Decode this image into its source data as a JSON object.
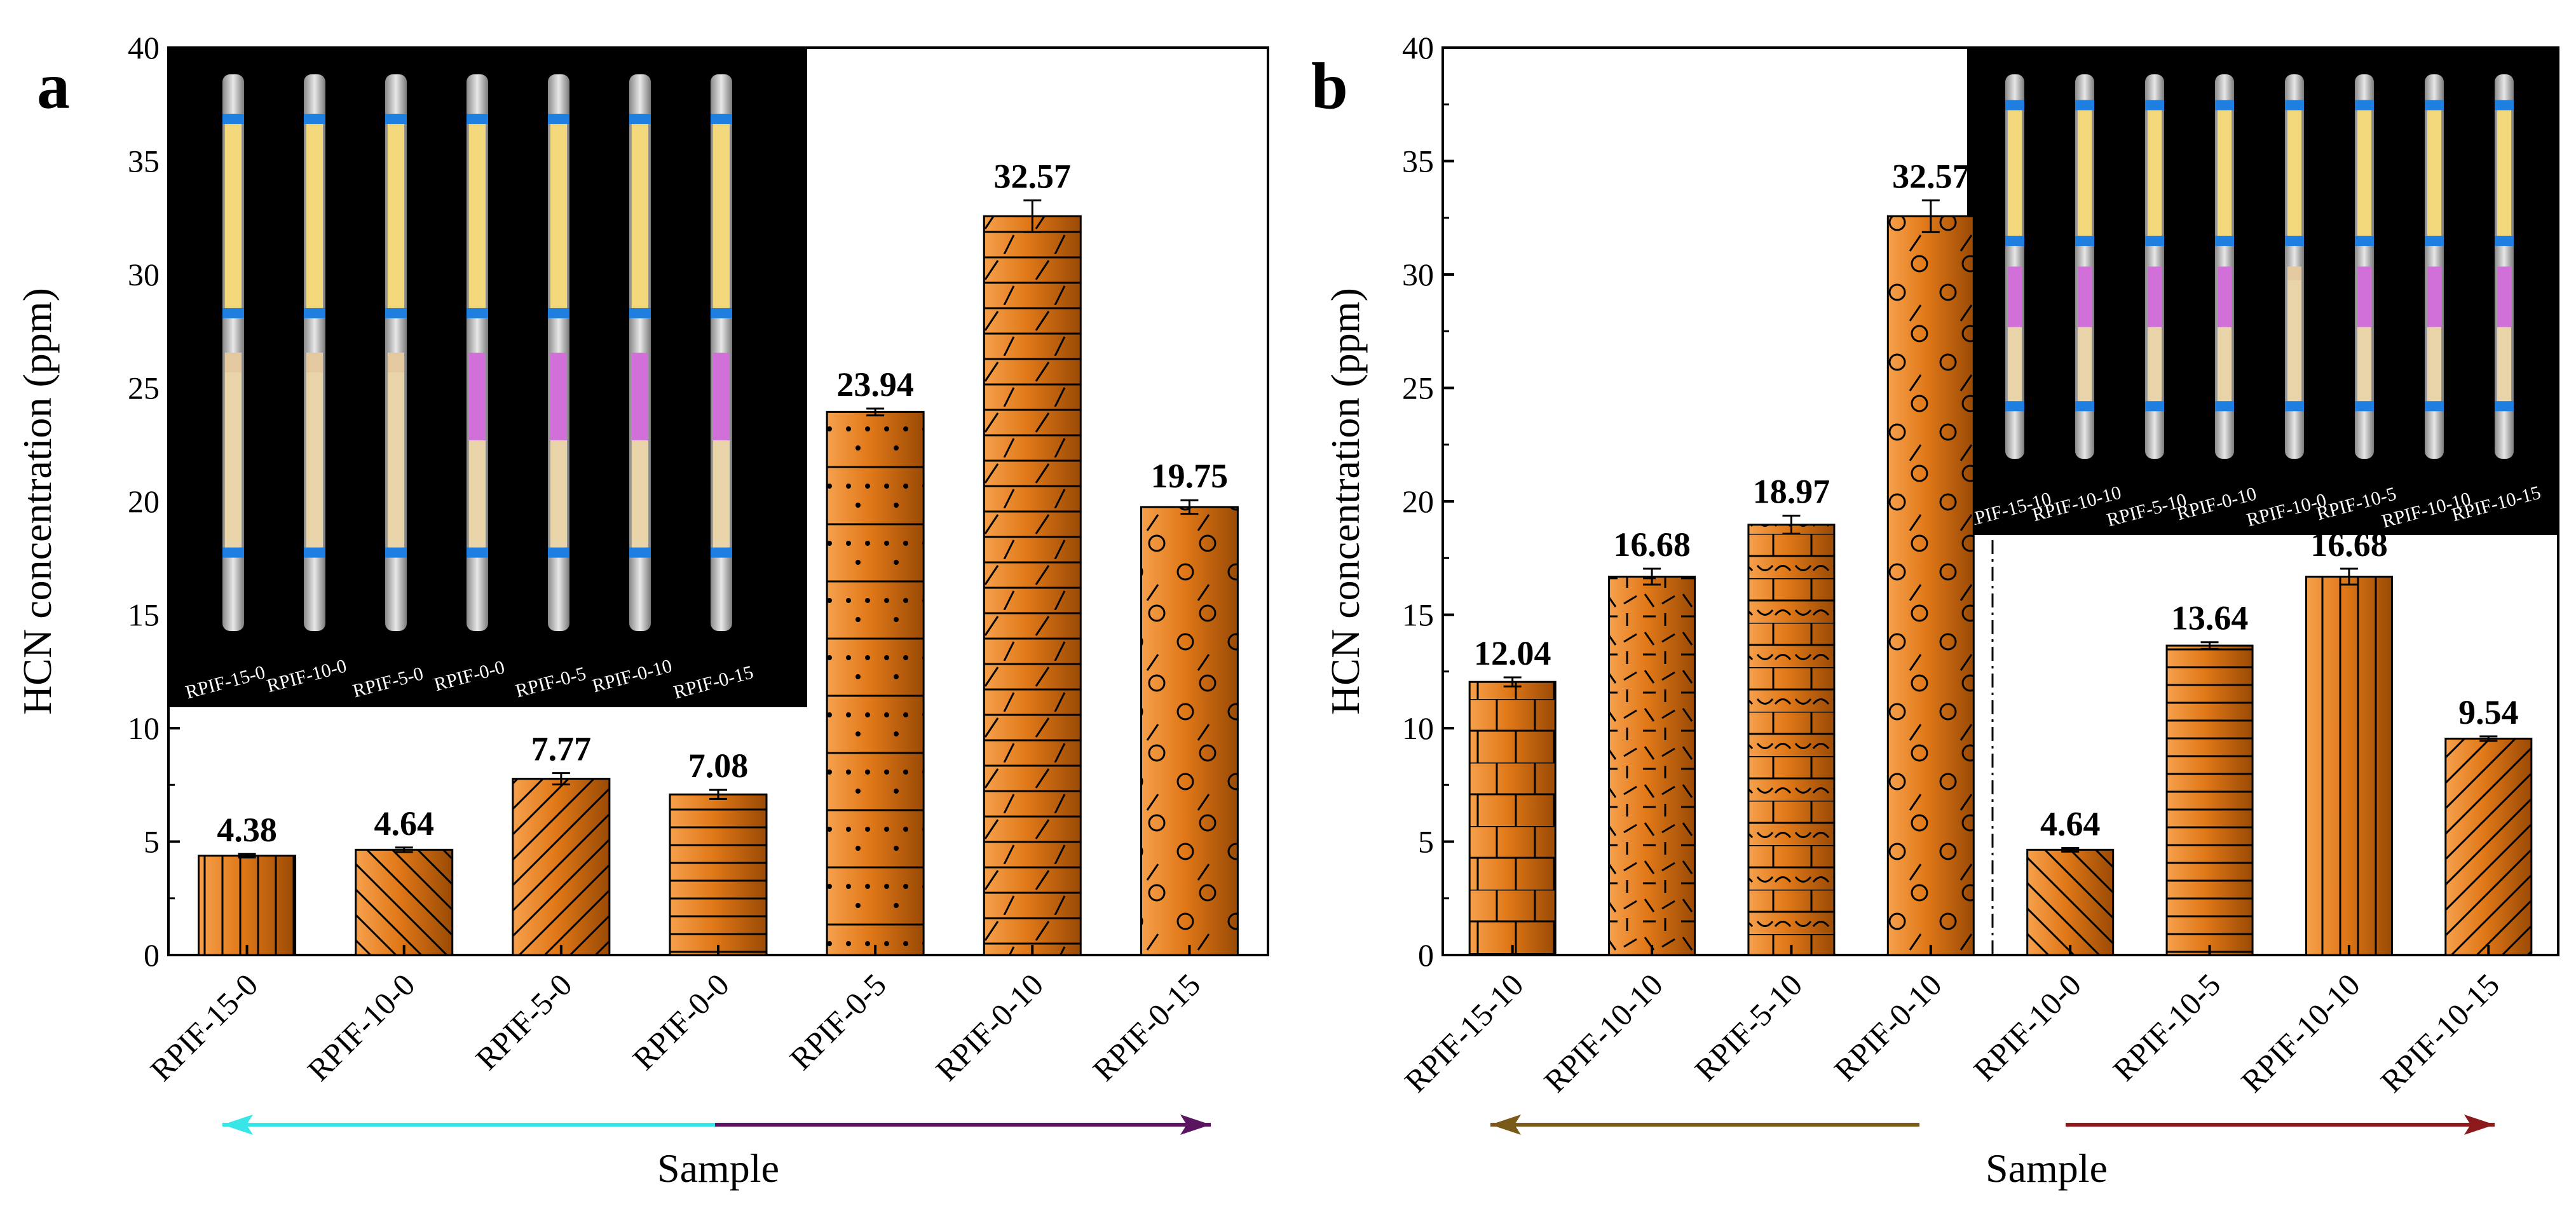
{
  "colors": {
    "bar_light": "#f6a04c",
    "bar_mid": "#e07818",
    "bar_dark": "#9a4a05",
    "cyan_arrow": "#38e6e8",
    "purple_arrow": "#5a1460",
    "olive_arrow": "#7a5a18",
    "maroon_arrow": "#8c1a1c"
  },
  "chart_data": [
    {
      "panel": "a",
      "type": "bar",
      "ylabel": "HCN concentration (ppm)",
      "xlabel": "Sample",
      "ylim": [
        0,
        40
      ],
      "yticks": [
        0,
        5,
        10,
        15,
        20,
        25,
        30,
        35,
        40
      ],
      "categories": [
        "RPIF-15-0",
        "RPIF-10-0",
        "RPIF-5-0",
        "RPIF-0-0",
        "RPIF-0-5",
        "RPIF-0-10",
        "RPIF-0-15"
      ],
      "values": [
        4.38,
        4.64,
        7.77,
        7.08,
        23.94,
        32.57,
        19.75
      ],
      "value_labels": [
        "4.38",
        "4.64",
        "7.77",
        "7.08",
        "23.94",
        "32.57",
        "19.75"
      ],
      "errors": [
        0.08,
        0.1,
        0.25,
        0.2,
        0.15,
        0.7,
        0.3
      ],
      "patterns": [
        "vertical",
        "backdiag",
        "diag",
        "horizontal",
        "dots",
        "horizontal-slash",
        "circles-slash"
      ],
      "inset": {
        "labels": [
          "RPIF-15-0",
          "RPIF-10-0",
          "RPIF-5-0",
          "RPIF-0-0",
          "RPIF-0-5",
          "RPIF-0-10",
          "RPIF-0-15"
        ]
      }
    },
    {
      "panel": "b",
      "type": "bar",
      "ylabel": "HCN concentration (ppm)",
      "xlabel": "Sample",
      "ylim": [
        0,
        40
      ],
      "yticks": [
        0,
        5,
        10,
        15,
        20,
        25,
        30,
        35,
        40
      ],
      "categories": [
        "RPIF-15-10",
        "RPIF-10-10",
        "RPIF-5-10",
        "RPIF-0-10",
        "RPIF-10-0",
        "RPIF-10-5",
        "RPIF-10-10",
        "RPIF-10-15"
      ],
      "values": [
        12.04,
        16.68,
        18.97,
        32.57,
        4.64,
        13.64,
        16.68,
        9.54
      ],
      "value_labels": [
        "12.04",
        "16.68",
        "18.97",
        "32.57",
        "4.64",
        "13.64",
        "16.68",
        "9.54"
      ],
      "errors": [
        0.2,
        0.35,
        0.4,
        0.7,
        0.08,
        0.15,
        0.35,
        0.1
      ],
      "patterns": [
        "brick",
        "weave",
        "crescent",
        "circles-slash",
        "backdiag",
        "horizontal",
        "vertical",
        "diag"
      ],
      "inset": {
        "labels": [
          "RPIF-15-10",
          "RPIF-10-10",
          "RPIF-5-10",
          "RPIF-0-10",
          "RPIF-10-0",
          "RPIF-10-5",
          "RPIF-10-10",
          "RPIF-10-15"
        ]
      }
    }
  ]
}
